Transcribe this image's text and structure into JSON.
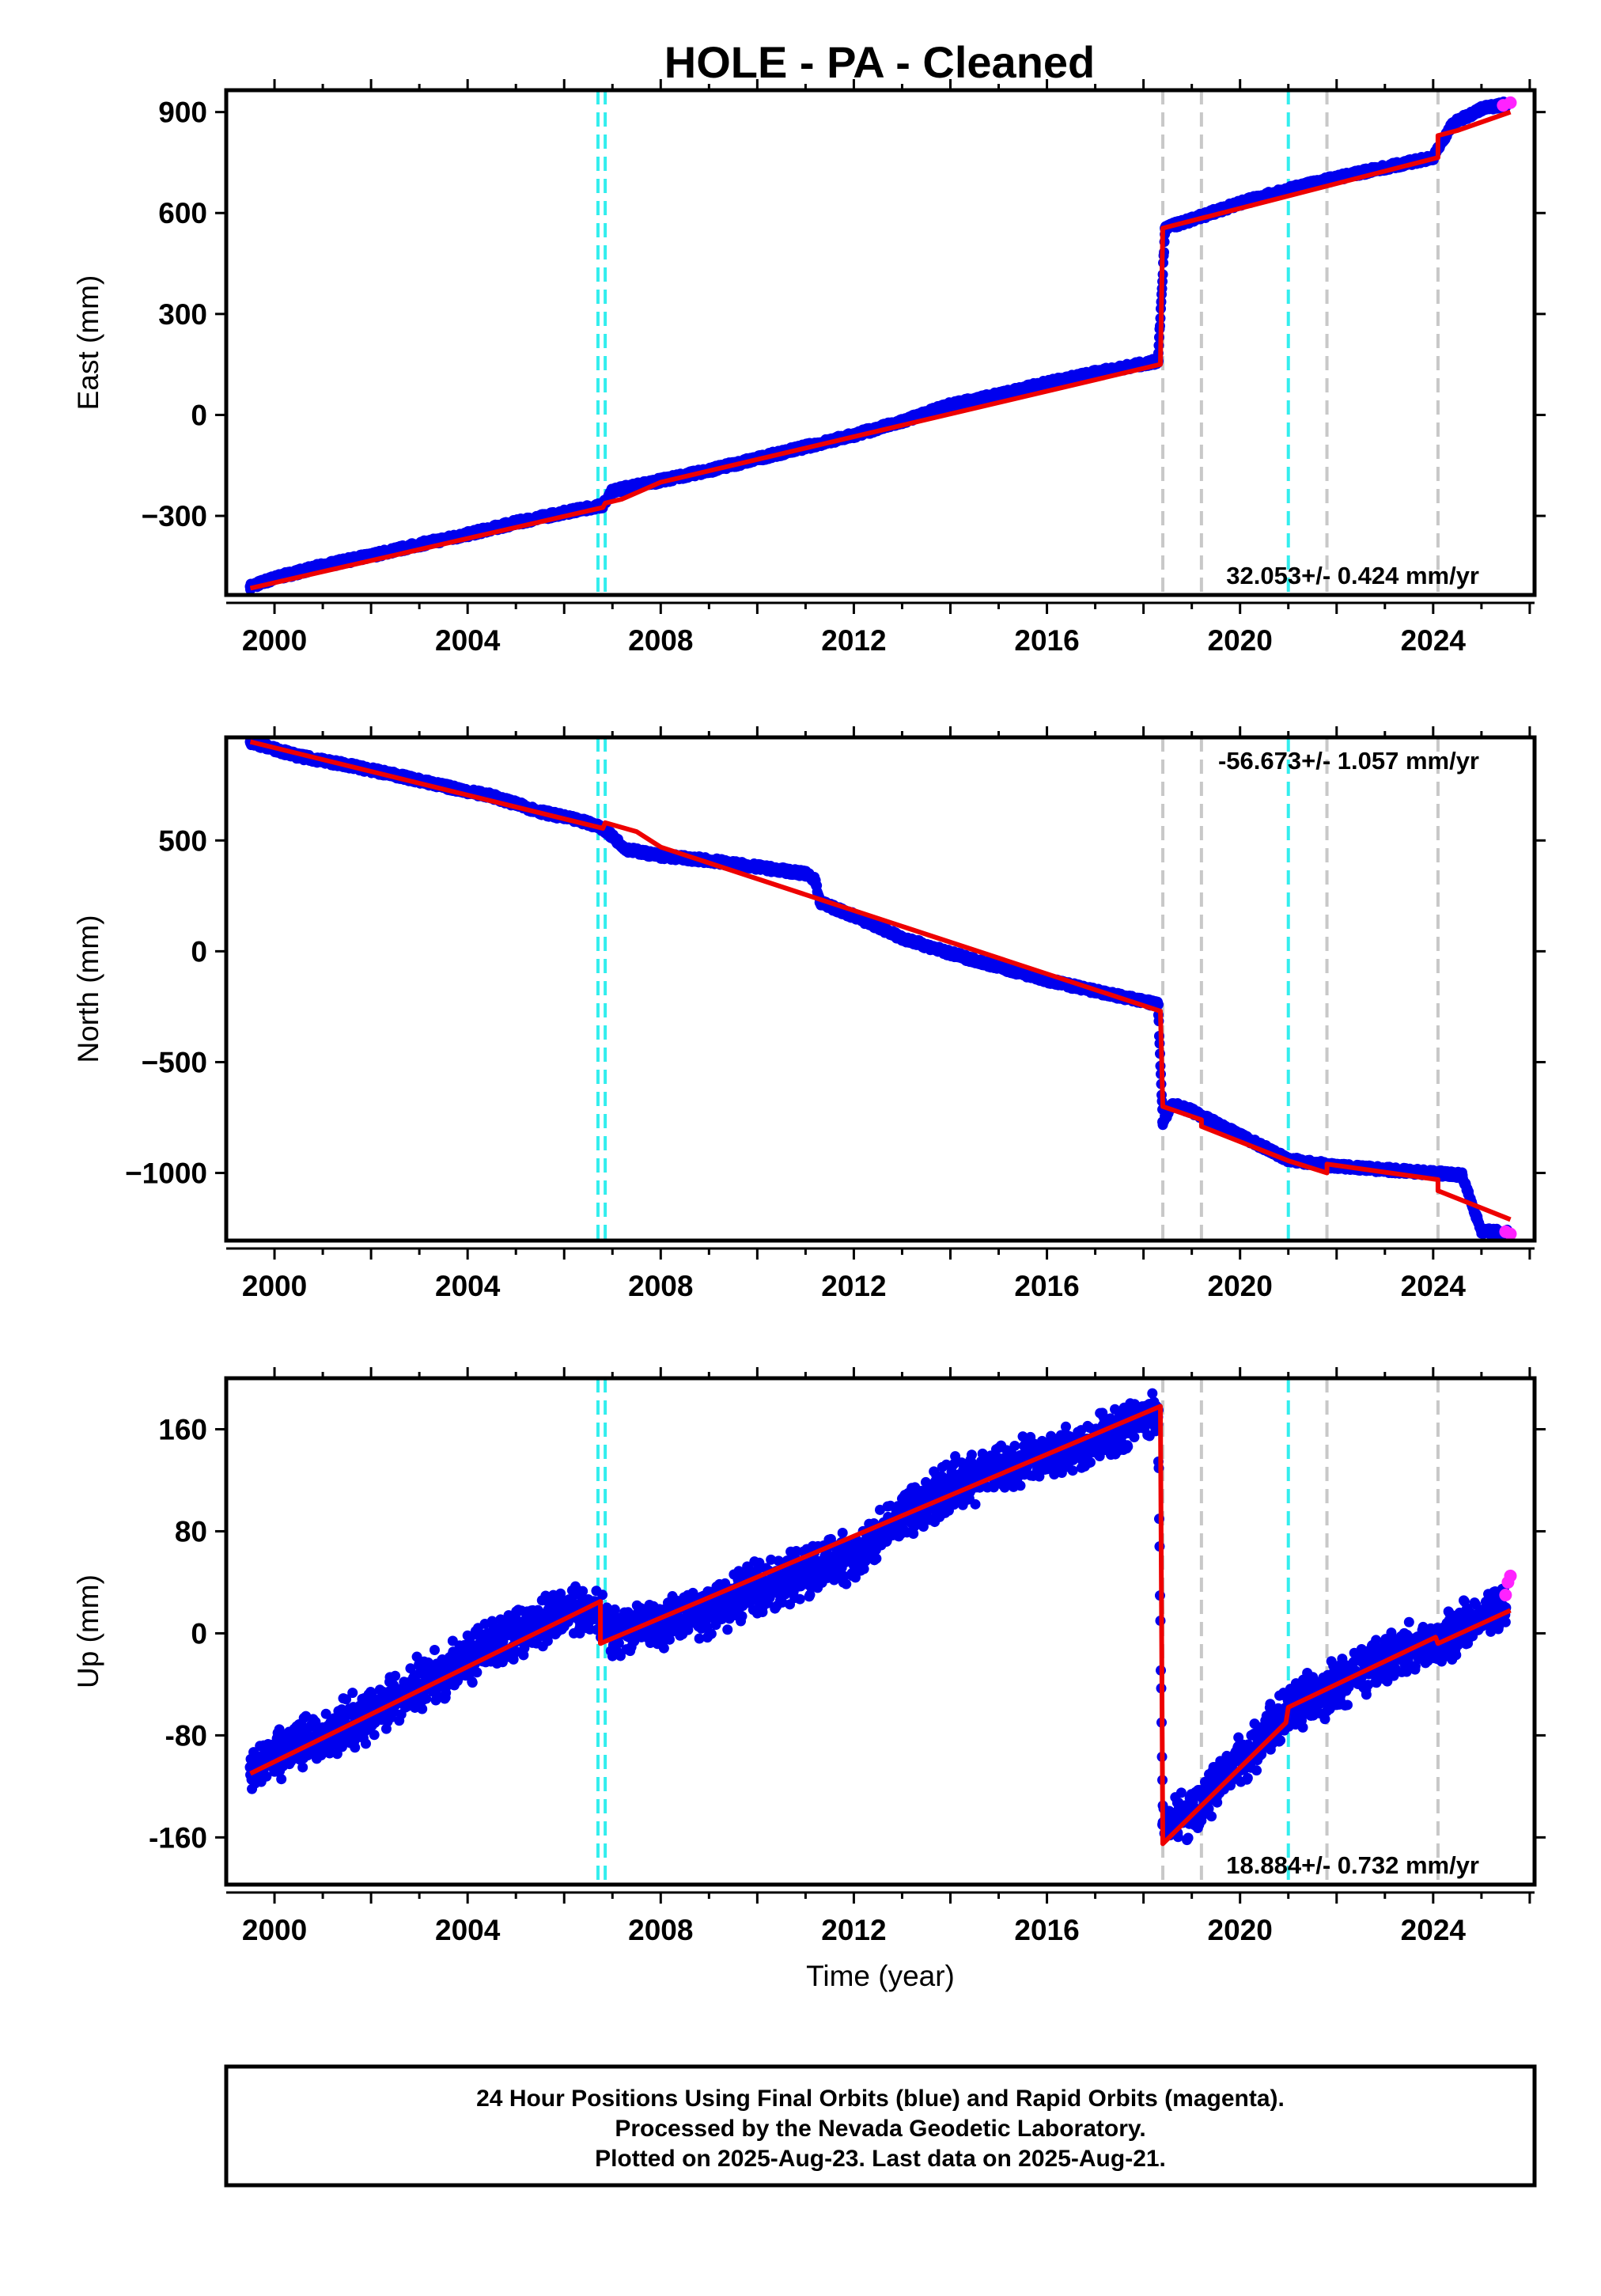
{
  "figure_title": "HOLE  - PA - Cleaned",
  "caption": {
    "line1": "24 Hour Positions Using Final Orbits (blue) and Rapid Orbits (magenta).",
    "line2": "Processed by the Nevada Geodetic Laboratory.",
    "line3": "Plotted on 2025-Aug-23. Last data on 2025-Aug-21."
  },
  "colors": {
    "final_orbits": "#0000ee",
    "rapid_orbits": "#ff22ff",
    "model_fit": "#ee0000",
    "equipment_change": "#33eeee",
    "event": "#c8c8c8",
    "frame": "#000000"
  },
  "chart_data": [
    {
      "type": "scatter",
      "panel": "east",
      "ylabel": "East (mm)",
      "xlabel": "",
      "xlim": [
        1999.0,
        2026.1
      ],
      "ylim": [
        -535,
        965
      ],
      "xticks": [
        "2000",
        "2004",
        "2008",
        "2012",
        "2016",
        "2020",
        "2024"
      ],
      "yticks": [
        "900",
        "600",
        "300",
        "0",
        "−300"
      ],
      "ytick_values": [
        900,
        600,
        300,
        0,
        -300
      ],
      "rate": "32.053+/- 0.424 mm/yr",
      "rate_position": "bottom-right",
      "cyan_lines": [
        2006.7,
        2006.85,
        2021.0
      ],
      "gray_lines": [
        2018.4,
        2019.2,
        2021.8,
        2024.1
      ],
      "final_orbits": [
        [
          1999.5,
          -510
        ],
        [
          2000.0,
          -485
        ],
        [
          2001.0,
          -448
        ],
        [
          2002.0,
          -418
        ],
        [
          2003.0,
          -385
        ],
        [
          2004.0,
          -355
        ],
        [
          2005.0,
          -320
        ],
        [
          2006.0,
          -290
        ],
        [
          2006.8,
          -268
        ],
        [
          2007.0,
          -225
        ],
        [
          2008.0,
          -195
        ],
        [
          2009.0,
          -165
        ],
        [
          2010.0,
          -130
        ],
        [
          2011.0,
          -95
        ],
        [
          2012.0,
          -60
        ],
        [
          2013.0,
          -20
        ],
        [
          2014.0,
          30
        ],
        [
          2015.0,
          60
        ],
        [
          2016.0,
          95
        ],
        [
          2017.0,
          125
        ],
        [
          2018.3,
          160
        ],
        [
          2018.45,
          555
        ],
        [
          2019.0,
          580
        ],
        [
          2020.0,
          630
        ],
        [
          2021.0,
          670
        ],
        [
          2022.0,
          705
        ],
        [
          2023.0,
          735
        ],
        [
          2024.0,
          765
        ],
        [
          2024.4,
          865
        ],
        [
          2025.0,
          910
        ],
        [
          2025.55,
          925
        ]
      ],
      "rapid_orbits": [
        [
          2025.45,
          920
        ],
        [
          2025.6,
          928
        ]
      ],
      "model_fit": [
        [
          1999.5,
          -515
        ],
        [
          2006.8,
          -275
        ],
        [
          2006.85,
          -262
        ],
        [
          2007.2,
          -250
        ],
        [
          2008.0,
          -200
        ],
        [
          2018.35,
          150
        ],
        [
          2018.4,
          555
        ],
        [
          2024.1,
          765
        ],
        [
          2024.1,
          830
        ],
        [
          2024.5,
          845
        ],
        [
          2025.6,
          900
        ]
      ]
    },
    {
      "type": "scatter",
      "panel": "north",
      "ylabel": "North (mm)",
      "xlabel": "",
      "xlim": [
        1999.0,
        2026.1
      ],
      "ylim": [
        -1305,
        965
      ],
      "xticks": [
        "2000",
        "2004",
        "2008",
        "2012",
        "2016",
        "2020",
        "2024"
      ],
      "yticks": [
        "500",
        "0",
        "−500",
        "−1000"
      ],
      "ytick_values": [
        500,
        0,
        -500,
        -1000
      ],
      "rate": "-56.673+/- 1.057 mm/yr",
      "rate_position": "top-right",
      "cyan_lines": [
        2006.7,
        2006.85,
        2021.0
      ],
      "gray_lines": [
        2018.4,
        2019.2,
        2021.8,
        2024.1
      ],
      "final_orbits": [
        [
          1999.5,
          945
        ],
        [
          2000.5,
          880
        ],
        [
          2001.5,
          840
        ],
        [
          2002.5,
          795
        ],
        [
          2003.5,
          745
        ],
        [
          2004.5,
          700
        ],
        [
          2005.5,
          630
        ],
        [
          2006.5,
          580
        ],
        [
          2006.8,
          555
        ],
        [
          2007.3,
          460
        ],
        [
          2008.0,
          430
        ],
        [
          2009.0,
          410
        ],
        [
          2010.0,
          380
        ],
        [
          2011.0,
          350
        ],
        [
          2011.2,
          320
        ],
        [
          2011.3,
          220
        ],
        [
          2012.0,
          160
        ],
        [
          2013.0,
          60
        ],
        [
          2014.0,
          -10
        ],
        [
          2015.0,
          -70
        ],
        [
          2016.0,
          -130
        ],
        [
          2017.0,
          -180
        ],
        [
          2018.3,
          -240
        ],
        [
          2018.4,
          -770
        ],
        [
          2018.6,
          -690
        ],
        [
          2019.0,
          -720
        ],
        [
          2020.0,
          -830
        ],
        [
          2021.0,
          -940
        ],
        [
          2022.0,
          -970
        ],
        [
          2023.0,
          -985
        ],
        [
          2024.0,
          -1000
        ],
        [
          2024.6,
          -1010
        ],
        [
          2024.8,
          -1140
        ],
        [
          2025.0,
          -1260
        ],
        [
          2025.55,
          -1270
        ]
      ],
      "rapid_orbits": [
        [
          2025.5,
          -1265
        ],
        [
          2025.6,
          -1275
        ]
      ],
      "model_fit": [
        [
          1999.5,
          945
        ],
        [
          2006.8,
          555
        ],
        [
          2006.85,
          580
        ],
        [
          2007.5,
          540
        ],
        [
          2008.0,
          470
        ],
        [
          2018.35,
          -270
        ],
        [
          2018.4,
          -700
        ],
        [
          2019.2,
          -760
        ],
        [
          2019.2,
          -790
        ],
        [
          2021.0,
          -945
        ],
        [
          2021.8,
          -1000
        ],
        [
          2021.8,
          -960
        ],
        [
          2024.1,
          -1030
        ],
        [
          2024.1,
          -1080
        ],
        [
          2025.6,
          -1210
        ]
      ]
    },
    {
      "type": "scatter",
      "panel": "up",
      "ylabel": "Up (mm)",
      "xlabel": "Time (year)",
      "xlim": [
        1999.0,
        2026.1
      ],
      "ylim": [
        -197,
        200
      ],
      "xticks": [
        "2000",
        "2004",
        "2008",
        "2012",
        "2016",
        "2020",
        "2024"
      ],
      "yticks": [
        "160",
        "80",
        "0",
        "-80",
        "-160"
      ],
      "ytick_values": [
        160,
        80,
        0,
        -80,
        -160
      ],
      "rate": "18.884+/- 0.732 mm/yr",
      "rate_position": "bottom-right",
      "cyan_lines": [
        2006.7,
        2006.85,
        2021.0
      ],
      "gray_lines": [
        2018.4,
        2019.2,
        2021.8,
        2024.1
      ],
      "final_orbits": [
        [
          1999.5,
          -105
        ],
        [
          2000.0,
          -95
        ],
        [
          2001.0,
          -80
        ],
        [
          2002.0,
          -62
        ],
        [
          2003.0,
          -40
        ],
        [
          2004.0,
          -20
        ],
        [
          2005.0,
          0
        ],
        [
          2006.0,
          15
        ],
        [
          2006.6,
          22
        ],
        [
          2007.0,
          2
        ],
        [
          2008.0,
          8
        ],
        [
          2009.0,
          18
        ],
        [
          2010.0,
          35
        ],
        [
          2011.0,
          48
        ],
        [
          2012.0,
          60
        ],
        [
          2013.0,
          90
        ],
        [
          2014.0,
          115
        ],
        [
          2015.0,
          130
        ],
        [
          2016.0,
          140
        ],
        [
          2017.0,
          150
        ],
        [
          2018.3,
          175
        ],
        [
          2018.4,
          -150
        ],
        [
          2019.0,
          -140
        ],
        [
          2020.0,
          -100
        ],
        [
          2021.0,
          -60
        ],
        [
          2022.0,
          -40
        ],
        [
          2023.0,
          -20
        ],
        [
          2024.0,
          -5
        ],
        [
          2025.0,
          12
        ],
        [
          2025.5,
          20
        ]
      ],
      "rapid_orbits": [
        [
          2025.5,
          30
        ],
        [
          2025.55,
          40
        ],
        [
          2025.6,
          45
        ]
      ],
      "model_fit": [
        [
          1999.5,
          -110
        ],
        [
          2006.75,
          25
        ],
        [
          2006.75,
          -8
        ],
        [
          2018.35,
          178
        ],
        [
          2018.4,
          -165
        ],
        [
          2020.95,
          -70
        ],
        [
          2021.0,
          -58
        ],
        [
          2024.05,
          -3
        ],
        [
          2024.1,
          -8
        ],
        [
          2025.6,
          18
        ]
      ]
    }
  ]
}
